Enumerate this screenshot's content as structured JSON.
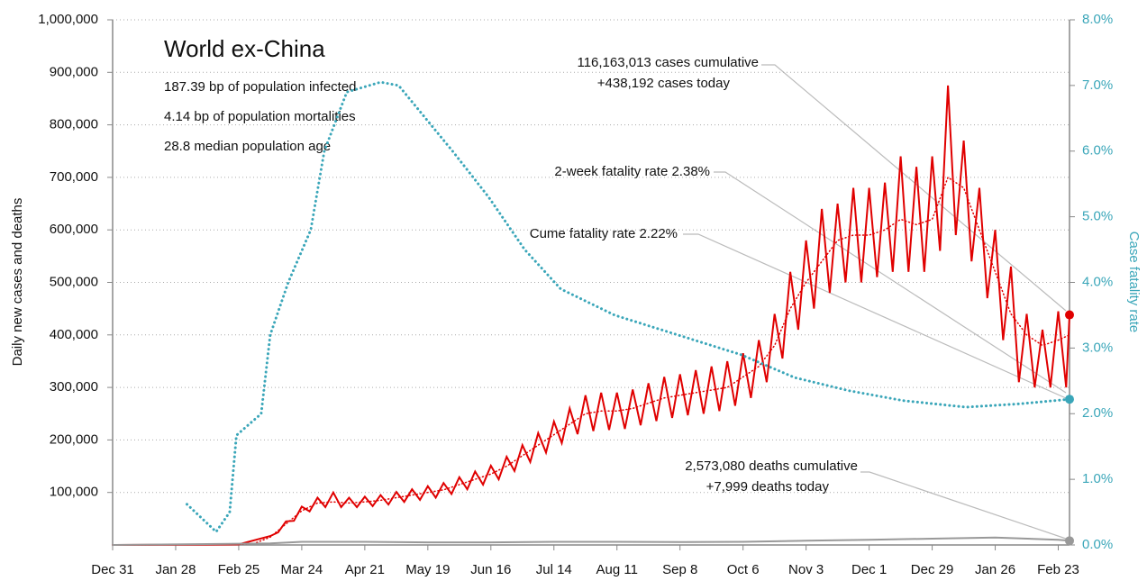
{
  "chart_data": {
    "type": "line",
    "title": "World ex-China",
    "subtitle": [
      "187.39 bp of population infected",
      "4.14 bp of population mortalities",
      "28.8 median population age"
    ],
    "annotations": [
      "116,163,013 cases cumulative",
      "+438,192 cases today",
      "2-week fatality rate 2.38%",
      "Cume fatality rate 2.22%",
      "2,573,080 deaths cumulative",
      "+7,999 deaths today"
    ],
    "ylabel": "Daily new cases and deaths",
    "y2label": "Case fatality rate",
    "xlim": [
      0,
      425
    ],
    "xticks": [
      {
        "value": 0,
        "label": "Dec 31"
      },
      {
        "value": 28,
        "label": "Jan 28"
      },
      {
        "value": 56,
        "label": "Feb 25"
      },
      {
        "value": 84,
        "label": "Mar 24"
      },
      {
        "value": 112,
        "label": "Apr 21"
      },
      {
        "value": 140,
        "label": "May 19"
      },
      {
        "value": 168,
        "label": "Jun 16"
      },
      {
        "value": 196,
        "label": "Jul 14"
      },
      {
        "value": 224,
        "label": "Aug 11"
      },
      {
        "value": 252,
        "label": "Sep 8"
      },
      {
        "value": 280,
        "label": "Oct 6"
      },
      {
        "value": 308,
        "label": "Nov 3"
      },
      {
        "value": 336,
        "label": "Dec 1"
      },
      {
        "value": 364,
        "label": "Dec 29"
      },
      {
        "value": 392,
        "label": "Jan 26"
      },
      {
        "value": 420,
        "label": "Feb 23"
      }
    ],
    "ylim": [
      0,
      1000000
    ],
    "yticks": [
      {
        "value": 100000,
        "label": "100,000"
      },
      {
        "value": 200000,
        "label": "200,000"
      },
      {
        "value": 300000,
        "label": "300,000"
      },
      {
        "value": 400000,
        "label": "400,000"
      },
      {
        "value": 500000,
        "label": "500,000"
      },
      {
        "value": 600000,
        "label": "600,000"
      },
      {
        "value": 700000,
        "label": "700,000"
      },
      {
        "value": 800000,
        "label": "800,000"
      },
      {
        "value": 900000,
        "label": "900,000"
      },
      {
        "value": 1000000,
        "label": "1,000,000"
      }
    ],
    "y2lim": [
      0,
      8
    ],
    "y2ticks": [
      {
        "value": 0,
        "label": "0.0%"
      },
      {
        "value": 1,
        "label": "1.0%"
      },
      {
        "value": 2,
        "label": "2.0%"
      },
      {
        "value": 3,
        "label": "3.0%"
      },
      {
        "value": 4,
        "label": "4.0%"
      },
      {
        "value": 5,
        "label": "5.0%"
      },
      {
        "value": 6,
        "label": "6.0%"
      },
      {
        "value": 7,
        "label": "7.0%"
      },
      {
        "value": 8,
        "label": "8.0%"
      }
    ],
    "grid": true,
    "series": [
      {
        "color": "#e00000",
        "style": "solid",
        "x": [
          0,
          56,
          70,
          73.5,
          77,
          80.5,
          84,
          87.5,
          91,
          94.5,
          98,
          101.5,
          105,
          108.5,
          112,
          115.5,
          119,
          122.5,
          126,
          129.5,
          133,
          136.5,
          140,
          143.5,
          147,
          150.5,
          154,
          157.5,
          161,
          164.5,
          168,
          171.5,
          175,
          178.5,
          182,
          185.5,
          189,
          192.5,
          196,
          199.5,
          203,
          206.5,
          210,
          213.5,
          217,
          220.5,
          224,
          227.5,
          231,
          234.5,
          238,
          241.5,
          245,
          248.5,
          252,
          255.5,
          259,
          262.5,
          266,
          269.5,
          273,
          276.5,
          280,
          283.5,
          287,
          290.5,
          294,
          297.5,
          301,
          304.5,
          308,
          311.5,
          315,
          318.5,
          322,
          325.5,
          329,
          332.5,
          336,
          339.5,
          343,
          346.5,
          350,
          353.5,
          357,
          360.5,
          364,
          367.5,
          371,
          374.5,
          378,
          381.5,
          385,
          388.5,
          392,
          395.5,
          399,
          402.5,
          406,
          409.5,
          413,
          416.5,
          420,
          423.5,
          425
        ],
        "values": [
          0,
          1000,
          17000,
          24000,
          45000,
          46000,
          73000,
          64000,
          90000,
          72000,
          100000,
          72000,
          90000,
          72000,
          92000,
          74000,
          95000,
          77000,
          101000,
          82000,
          106000,
          86000,
          112000,
          90000,
          118000,
          97000,
          129000,
          106000,
          140000,
          115000,
          151000,
          125000,
          168000,
          141000,
          190000,
          158000,
          213000,
          176000,
          235000,
          194000,
          260000,
          211000,
          285000,
          217000,
          290000,
          219000,
          290000,
          221000,
          296000,
          228000,
          308000,
          236000,
          320000,
          242000,
          325000,
          247000,
          333000,
          250000,
          340000,
          255000,
          350000,
          265000,
          365000,
          280000,
          390000,
          310000,
          440000,
          355000,
          520000,
          410000,
          580000,
          450000,
          640000,
          480000,
          650000,
          500000,
          680000,
          500000,
          680000,
          510000,
          690000,
          520000,
          740000,
          520000,
          720000,
          520000,
          740000,
          560000,
          875000,
          590000,
          770000,
          540000,
          680000,
          470000,
          600000,
          390000,
          530000,
          310000,
          440000,
          300000,
          410000,
          300000,
          445000,
          300000,
          438192
        ]
      },
      {
        "color": "#e00000",
        "style": "dotted",
        "x": [
          0,
          56,
          63,
          70,
          77,
          84,
          91,
          98,
          105,
          112,
          119,
          126,
          133,
          140,
          147,
          154,
          161,
          168,
          175,
          182,
          189,
          196,
          203,
          210,
          217,
          224,
          231,
          238,
          245,
          252,
          259,
          266,
          273,
          280,
          287,
          294,
          301,
          308,
          315,
          322,
          329,
          336,
          343,
          350,
          357,
          364,
          371,
          378,
          385,
          392,
          399,
          406,
          413,
          420,
          425
        ],
        "values": [
          0,
          1000,
          3000,
          15000,
          40000,
          65000,
          80000,
          82000,
          80000,
          82000,
          85000,
          90000,
          95000,
          100000,
          105000,
          115000,
          125000,
          135000,
          150000,
          170000,
          190000,
          210000,
          230000,
          250000,
          255000,
          255000,
          260000,
          270000,
          280000,
          285000,
          290000,
          295000,
          300000,
          320000,
          340000,
          380000,
          450000,
          500000,
          540000,
          580000,
          590000,
          590000,
          600000,
          620000,
          610000,
          620000,
          700000,
          680000,
          600000,
          520000,
          440000,
          400000,
          380000,
          390000,
          400000
        ]
      },
      {
        "color": "#999999",
        "style": "solid",
        "x": [
          0,
          70,
          84,
          112,
          140,
          168,
          196,
          224,
          252,
          280,
          308,
          336,
          364,
          392,
          420,
          425
        ],
        "values": [
          0,
          3000,
          6000,
          6000,
          5000,
          5000,
          6000,
          6000,
          5500,
          6000,
          8000,
          10000,
          12000,
          14000,
          10000,
          7999
        ]
      },
      {
        "color": "#3aa6b9",
        "style": "dotted",
        "axis": "y2",
        "x": [
          33,
          46,
          52,
          55,
          66,
          70,
          78,
          88,
          94,
          104,
          119,
          127,
          139,
          151,
          167,
          183,
          199,
          223,
          251,
          279,
          303,
          327,
          351,
          379,
          403,
          425
        ],
        "values": [
          0.62,
          0.2,
          0.5,
          1.67,
          2.0,
          3.2,
          4.0,
          4.8,
          6.0,
          6.9,
          7.05,
          7.0,
          6.5,
          6.0,
          5.3,
          4.5,
          3.9,
          3.5,
          3.2,
          2.9,
          2.55,
          2.35,
          2.2,
          2.1,
          2.15,
          2.22
        ]
      }
    ]
  }
}
